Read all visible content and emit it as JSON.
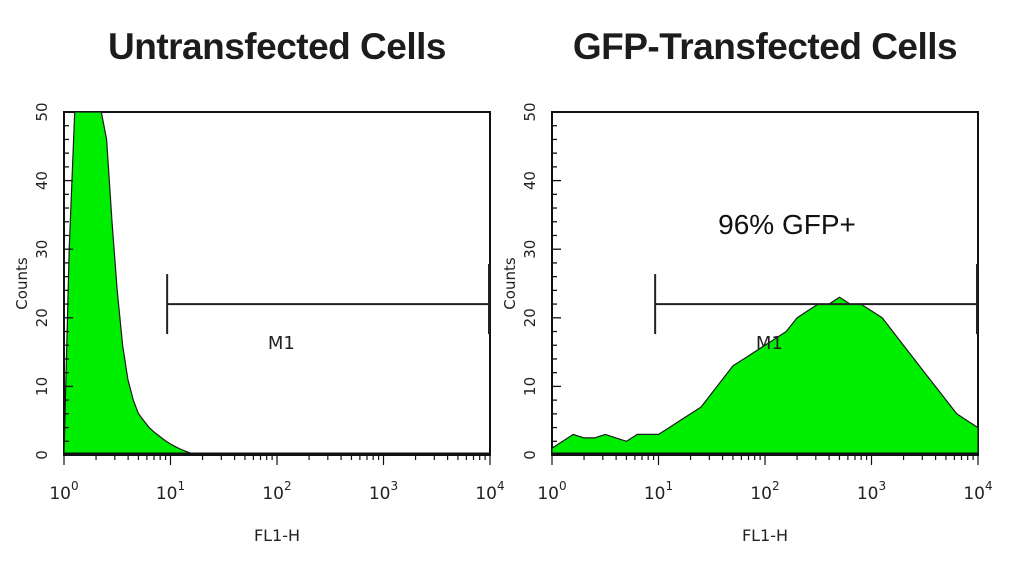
{
  "chart_data": [
    {
      "type": "area",
      "title": "Untransfected Cells",
      "xlabel": "FL1-H",
      "ylabel": "Counts",
      "x_scale": "log",
      "xlim": [
        1,
        10000
      ],
      "ylim": [
        0,
        50
      ],
      "x_ticks": [
        {
          "base": "10",
          "exp": "0"
        },
        {
          "base": "10",
          "exp": "1"
        },
        {
          "base": "10",
          "exp": "2"
        },
        {
          "base": "10",
          "exp": "3"
        },
        {
          "base": "10",
          "exp": "4"
        }
      ],
      "y_ticks": [
        "0",
        "10",
        "20",
        "30",
        "40",
        "50"
      ],
      "fill_color": "#00ee00",
      "series": [
        {
          "x": [
            1.0,
            1.12,
            1.26,
            1.41,
            1.58,
            1.78,
            2.0,
            2.24,
            2.51,
            2.82,
            3.16,
            3.55,
            3.98,
            4.47,
            5.01,
            5.62,
            6.31,
            7.08,
            7.94,
            8.91,
            10.0,
            11.2,
            12.6,
            14.1,
            15.8,
            20.0,
            50.0,
            200.0,
            1000.0,
            10000.0
          ],
          "values": [
            0,
            30,
            50,
            50,
            50,
            50,
            50,
            50,
            46,
            34,
            24,
            16,
            11,
            8,
            6,
            5,
            4,
            3.3,
            2.7,
            2.1,
            1.6,
            1.2,
            0.8,
            0.5,
            0.2,
            0,
            0,
            0,
            0,
            0
          ]
        }
      ],
      "gate": {
        "label": "M1",
        "x_start": 9.3,
        "x_end": 10000,
        "y": 22
      }
    },
    {
      "type": "area",
      "title": "GFP-Transfected Cells",
      "xlabel": "FL1-H",
      "ylabel": "Counts",
      "x_scale": "log",
      "xlim": [
        1,
        10000
      ],
      "ylim": [
        0,
        50
      ],
      "x_ticks": [
        {
          "base": "10",
          "exp": "0"
        },
        {
          "base": "10",
          "exp": "1"
        },
        {
          "base": "10",
          "exp": "2"
        },
        {
          "base": "10",
          "exp": "3"
        },
        {
          "base": "10",
          "exp": "4"
        }
      ],
      "y_ticks": [
        "0",
        "10",
        "20",
        "30",
        "40",
        "50"
      ],
      "fill_color": "#00ee00",
      "series": [
        {
          "x": [
            1.0,
            1.26,
            1.58,
            2.0,
            2.51,
            3.16,
            3.98,
            5.01,
            6.31,
            7.94,
            10.0,
            12.6,
            15.8,
            20.0,
            25.1,
            31.6,
            39.8,
            50.1,
            63.1,
            79.4,
            100,
            126,
            158,
            200,
            251,
            316,
            398,
            501,
            631,
            794,
            1000,
            1259,
            1585,
            1995,
            2512,
            3162,
            3981,
            5012,
            6310,
            7943,
            10000
          ],
          "values": [
            1,
            2,
            3,
            2.5,
            2.5,
            3,
            2.5,
            2,
            3,
            3,
            3,
            4,
            5,
            6,
            7,
            9,
            11,
            13,
            14,
            15,
            16,
            17,
            18,
            20,
            21,
            22,
            22,
            23,
            22,
            22,
            21,
            20,
            18,
            16,
            14,
            12,
            10,
            8,
            6,
            5,
            4
          ]
        }
      ],
      "gate": {
        "label": "M1",
        "x_start": 9.3,
        "x_end": 10000,
        "y": 22
      },
      "annotation": "96% GFP+"
    }
  ]
}
